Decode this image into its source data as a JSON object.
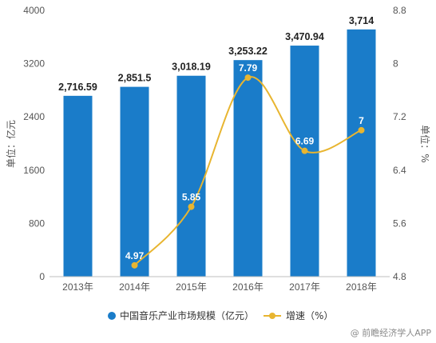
{
  "chart_data": {
    "type": "bar",
    "categories": [
      "2013年",
      "2014年",
      "2015年",
      "2016年",
      "2017年",
      "2018年"
    ],
    "series": [
      {
        "name": "中国音乐产业市场规模（亿元）",
        "type": "bar",
        "axis": "left",
        "color": "#1a7cc9",
        "values": [
          2716.59,
          2851.5,
          3018.19,
          3253.22,
          3470.94,
          3714
        ],
        "labels": [
          "2,716.59",
          "2,851.5",
          "3,018.19",
          "3,253.22",
          "3,470.94",
          "3,714"
        ]
      },
      {
        "name": "增速（%）",
        "type": "line",
        "axis": "right",
        "color": "#e8b530",
        "values": [
          null,
          4.97,
          5.85,
          7.79,
          6.69,
          7
        ],
        "labels": [
          "",
          "4.97",
          "5.85",
          "7.79",
          "6.69",
          "7"
        ]
      }
    ],
    "ylabel": "单位：亿元",
    "y2label": "单位：%",
    "ylim": [
      0,
      4000
    ],
    "yticks": [
      "0",
      "800",
      "1600",
      "2400",
      "3200",
      "4000"
    ],
    "y2lim": [
      4.8,
      8.8
    ],
    "y2ticks": [
      "4.8",
      "5.6",
      "6.4",
      "7.2",
      "8",
      "8.8"
    ],
    "legend_position": "bottom",
    "grid": false
  },
  "watermark": {
    "text": "@ 前瞻经济学人APP"
  }
}
